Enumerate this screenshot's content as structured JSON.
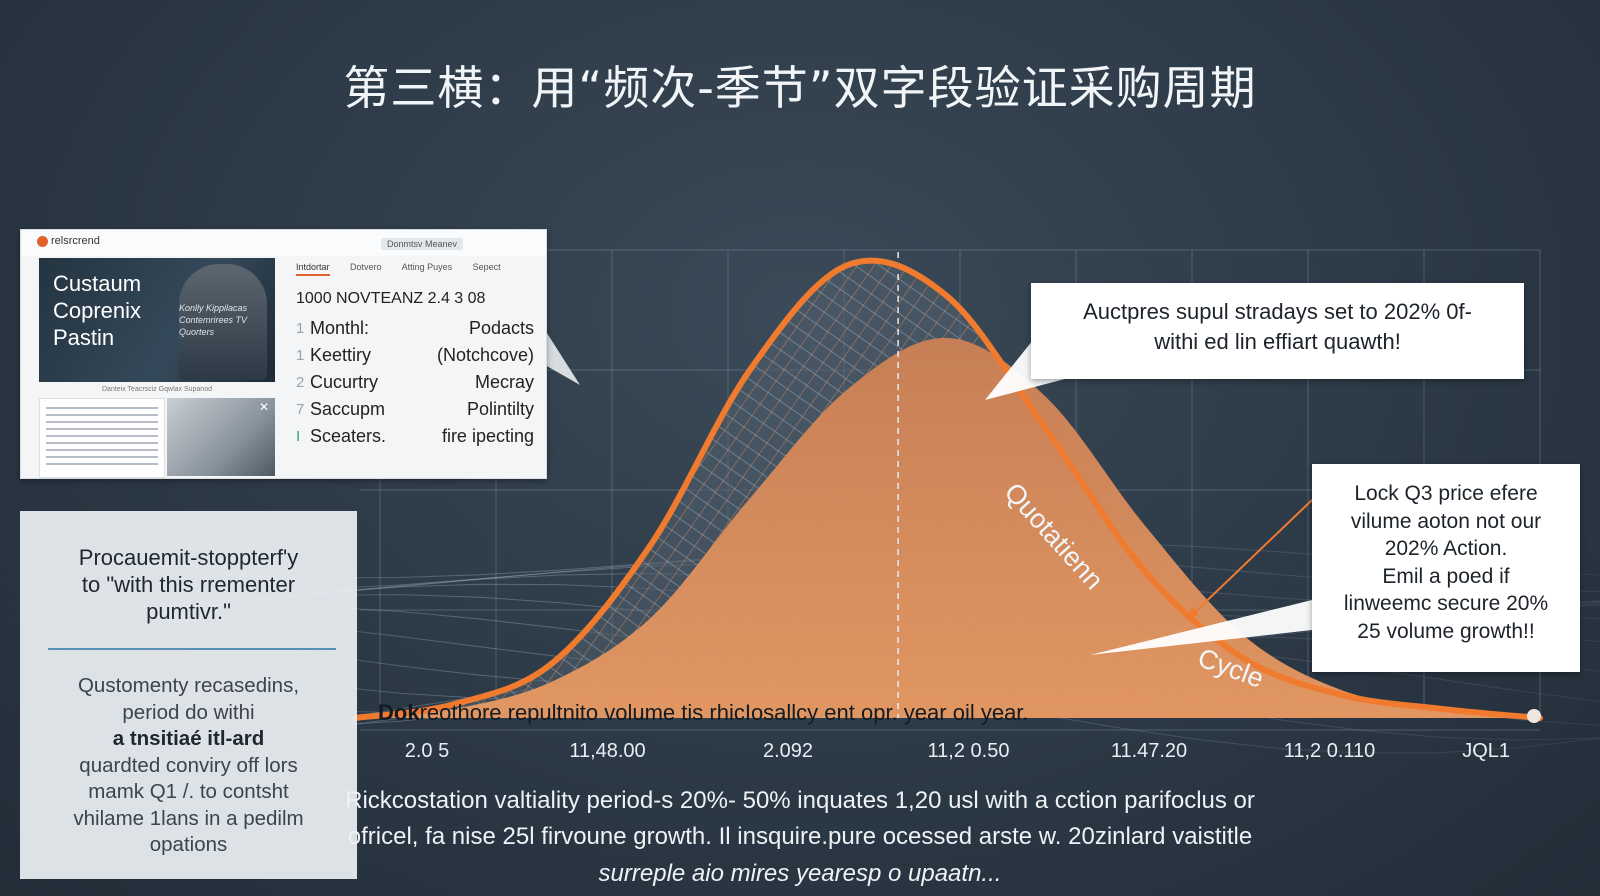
{
  "title": "第三横：用“频次-季节”双字段验证采购周期",
  "colors": {
    "curve": "#f07a2e",
    "fill": "#d9834e",
    "grid": "#6f8191",
    "panel": "#ffffff"
  },
  "screenshot_panel": {
    "brand": "relsrcrend",
    "header_button": "Donmtsv Meanev",
    "hero_title": [
      "Custaum",
      "Coprenix",
      "Pastin"
    ],
    "hero_caption": "Konlly Kippilacas Contemrirees TV Quorters",
    "hero_subcaption": "Danteix Teacrsciz Gqwlax Supanod",
    "tabs": [
      "Intdortar",
      "Dotvero",
      "Atting Puyes",
      "Sepect"
    ],
    "info_heading": "1000 NOVTEANZ 2.4 3 08",
    "rows": [
      {
        "num": "1",
        "left": "Monthl:",
        "right": "Podacts"
      },
      {
        "num": "1",
        "left": "Keettiry",
        "right": "(Notchcove)"
      },
      {
        "num": "2",
        "left": "Cucurtry",
        "right": "Mecray"
      },
      {
        "num": "7",
        "left": "Saccupm",
        "right": "Polintilty"
      },
      {
        "num": "I",
        "left": "Sceaters.",
        "right": "fire ipecting"
      }
    ],
    "icons": [
      "brand-logo-icon",
      "close-icon"
    ]
  },
  "callouts": {
    "top_right": [
      "Auctpres supul stradays set to 202% 0f-",
      "withi ed lin effiart quawth!"
    ],
    "right": [
      "Lock Q3 price efere",
      "vilume aoton not our",
      "202% Action.",
      "Emil a poed if",
      "linweemc secure 20%",
      "25 volume growth!!"
    ]
  },
  "left_card": {
    "title": [
      "Procauemit-stoppterf'y",
      "to \"with this rrementer",
      "pumtivr.\""
    ],
    "body": [
      "Qustomenty recasedins,",
      "period do withi",
      "a tnsitiaé itl-ard",
      "quardted conviry off lors",
      "mamk Q1 /. to contsht",
      "vhilame 1lans in a pedilm",
      "opations"
    ]
  },
  "overlay_text": {
    "bold": "Dok",
    "rest": "reothore repultnito volume tis rhicIosallcy ent opr. year oil year."
  },
  "curve_labels": [
    "Quotatienn",
    "Cycle"
  ],
  "caption": [
    "Rickcostation valtiality period-s 20%- 50% inquates 1,20 usl with a cction parifoclus or",
    "ofricel, fa nise 25l firvoune growth. Il insquire.pure ocessed arste w. 20zinlard vaistitle",
    "surreple aio mires yearesp o upaatn..."
  ],
  "chart_data": {
    "type": "area",
    "title": "",
    "xlabel": "",
    "ylabel": "",
    "x_tick_labels": [
      "2.0 5",
      "11,48.00",
      "2.092",
      "11,2 0.50",
      "11.47.20",
      "11,2 0.110",
      "JQL1"
    ],
    "grid": true,
    "legend": "none",
    "x": [
      0,
      0.5,
      1,
      1.5,
      2,
      2.5,
      3,
      3.5,
      4,
      4.5,
      5,
      5.5,
      6
    ],
    "series": [
      {
        "values": [
          0,
          3,
          12,
          38,
          76,
          99,
          92,
          63,
          32,
          13,
          5,
          2,
          0
        ]
      },
      {
        "values": [
          0,
          2,
          8,
          22,
          48,
          72,
          83,
          70,
          42,
          18,
          6,
          2,
          0
        ]
      }
    ],
    "ylim": [
      0,
      100
    ],
    "peak_marker_x": 2.75
  }
}
